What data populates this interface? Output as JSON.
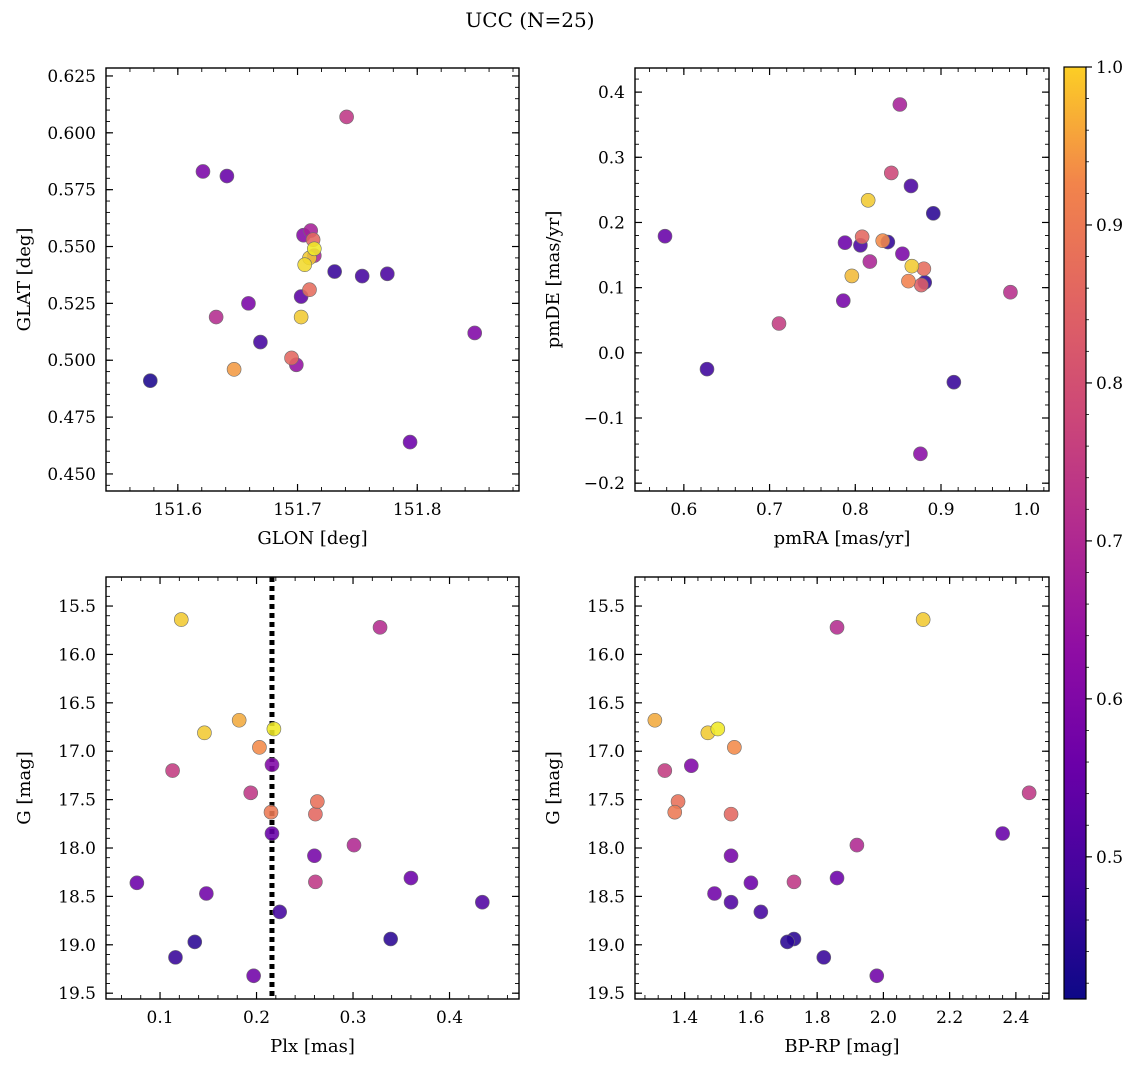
{
  "figure": {
    "title": "UCC (N=25)"
  },
  "colorbar": {
    "min": 0.41,
    "max": 1.0,
    "ticks": [
      0.5,
      0.6,
      0.7,
      0.8,
      0.9,
      1.0
    ],
    "cmap": "plasma"
  },
  "chart_data": [
    {
      "type": "scatter",
      "xlabel": "GLON [deg]",
      "ylabel": "GLAT [deg]",
      "xlim": [
        151.54,
        151.885
      ],
      "ylim": [
        0.4425,
        0.6285
      ],
      "xticks": [
        151.6,
        151.7,
        151.8
      ],
      "yticks": [
        0.45,
        0.475,
        0.5,
        0.525,
        0.55,
        0.575,
        0.6,
        0.625
      ],
      "points": [
        {
          "x": 151.741,
          "y": 0.607,
          "c": 0.74
        },
        {
          "x": 151.621,
          "y": 0.583,
          "c": 0.59
        },
        {
          "x": 151.641,
          "y": 0.581,
          "c": 0.55
        },
        {
          "x": 151.711,
          "y": 0.557,
          "c": 0.68
        },
        {
          "x": 151.705,
          "y": 0.555,
          "c": 0.61
        },
        {
          "x": 151.713,
          "y": 0.553,
          "c": 0.86
        },
        {
          "x": 151.714,
          "y": 0.549,
          "c": 0.99
        },
        {
          "x": 151.714,
          "y": 0.546,
          "c": 0.69
        },
        {
          "x": 151.71,
          "y": 0.545,
          "c": 0.97
        },
        {
          "x": 151.706,
          "y": 0.542,
          "c": 0.98
        },
        {
          "x": 151.731,
          "y": 0.539,
          "c": 0.47
        },
        {
          "x": 151.775,
          "y": 0.538,
          "c": 0.5
        },
        {
          "x": 151.754,
          "y": 0.537,
          "c": 0.49
        },
        {
          "x": 151.71,
          "y": 0.531,
          "c": 0.87
        },
        {
          "x": 151.703,
          "y": 0.528,
          "c": 0.53
        },
        {
          "x": 151.659,
          "y": 0.525,
          "c": 0.59
        },
        {
          "x": 151.703,
          "y": 0.519,
          "c": 0.97
        },
        {
          "x": 151.632,
          "y": 0.519,
          "c": 0.71
        },
        {
          "x": 151.848,
          "y": 0.512,
          "c": 0.6
        },
        {
          "x": 151.669,
          "y": 0.508,
          "c": 0.49
        },
        {
          "x": 151.695,
          "y": 0.501,
          "c": 0.86
        },
        {
          "x": 151.699,
          "y": 0.498,
          "c": 0.64
        },
        {
          "x": 151.647,
          "y": 0.496,
          "c": 0.94
        },
        {
          "x": 151.577,
          "y": 0.491,
          "c": 0.43
        },
        {
          "x": 151.794,
          "y": 0.464,
          "c": 0.56
        }
      ]
    },
    {
      "type": "scatter",
      "xlabel": "pmRA [mas/yr]",
      "ylabel": "pmDE [mas/yr]",
      "xlim": [
        0.543,
        1.026
      ],
      "ylim": [
        -0.212,
        0.437
      ],
      "xticks": [
        0.6,
        0.7,
        0.8,
        0.9,
        1.0
      ],
      "yticks": [
        -0.2,
        -0.1,
        0.0,
        0.1,
        0.2,
        0.3,
        0.4
      ],
      "points": [
        {
          "x": 0.852,
          "y": 0.381,
          "c": 0.68
        },
        {
          "x": 0.842,
          "y": 0.276,
          "c": 0.78
        },
        {
          "x": 0.865,
          "y": 0.256,
          "c": 0.5
        },
        {
          "x": 0.815,
          "y": 0.234,
          "c": 0.97
        },
        {
          "x": 0.891,
          "y": 0.214,
          "c": 0.45
        },
        {
          "x": 0.578,
          "y": 0.179,
          "c": 0.55
        },
        {
          "x": 0.808,
          "y": 0.178,
          "c": 0.86
        },
        {
          "x": 0.832,
          "y": 0.172,
          "c": 0.93
        },
        {
          "x": 0.838,
          "y": 0.17,
          "c": 0.46
        },
        {
          "x": 0.788,
          "y": 0.169,
          "c": 0.56
        },
        {
          "x": 0.806,
          "y": 0.165,
          "c": 0.5
        },
        {
          "x": 0.855,
          "y": 0.152,
          "c": 0.59
        },
        {
          "x": 0.817,
          "y": 0.14,
          "c": 0.69
        },
        {
          "x": 0.866,
          "y": 0.133,
          "c": 0.97
        },
        {
          "x": 0.88,
          "y": 0.129,
          "c": 0.87
        },
        {
          "x": 0.796,
          "y": 0.118,
          "c": 0.96
        },
        {
          "x": 0.862,
          "y": 0.11,
          "c": 0.92
        },
        {
          "x": 0.881,
          "y": 0.108,
          "c": 0.46
        },
        {
          "x": 0.877,
          "y": 0.104,
          "c": 0.84
        },
        {
          "x": 0.981,
          "y": 0.093,
          "c": 0.72
        },
        {
          "x": 0.786,
          "y": 0.08,
          "c": 0.58
        },
        {
          "x": 0.711,
          "y": 0.045,
          "c": 0.75
        },
        {
          "x": 0.627,
          "y": -0.025,
          "c": 0.48
        },
        {
          "x": 0.915,
          "y": -0.045,
          "c": 0.47
        },
        {
          "x": 0.876,
          "y": -0.155,
          "c": 0.62
        }
      ]
    },
    {
      "type": "scatter",
      "xlabel": "Plx [mas]",
      "ylabel": "G [mag]",
      "xlim": [
        0.044,
        0.472
      ],
      "ylim": [
        19.56,
        15.2
      ],
      "y_inverted": true,
      "xticks": [
        0.1,
        0.2,
        0.3,
        0.4
      ],
      "yticks": [
        15.5,
        16.0,
        16.5,
        17.0,
        17.5,
        18.0,
        18.5,
        19.0,
        19.5
      ],
      "vline": {
        "x": 0.216,
        "style": "dotted",
        "color": "#000000"
      },
      "points": [
        {
          "x": 0.122,
          "y": 15.64,
          "c": 0.97
        },
        {
          "x": 0.328,
          "y": 15.72,
          "c": 0.71
        },
        {
          "x": 0.182,
          "y": 16.68,
          "c": 0.95
        },
        {
          "x": 0.218,
          "y": 16.77,
          "c": 0.99
        },
        {
          "x": 0.146,
          "y": 16.81,
          "c": 0.97
        },
        {
          "x": 0.203,
          "y": 16.96,
          "c": 0.93
        },
        {
          "x": 0.216,
          "y": 17.14,
          "c": 0.6
        },
        {
          "x": 0.113,
          "y": 17.2,
          "c": 0.75
        },
        {
          "x": 0.194,
          "y": 17.43,
          "c": 0.74
        },
        {
          "x": 0.263,
          "y": 17.52,
          "c": 0.88
        },
        {
          "x": 0.215,
          "y": 17.63,
          "c": 0.9
        },
        {
          "x": 0.261,
          "y": 17.65,
          "c": 0.86
        },
        {
          "x": 0.216,
          "y": 17.85,
          "c": 0.55
        },
        {
          "x": 0.301,
          "y": 17.97,
          "c": 0.7
        },
        {
          "x": 0.26,
          "y": 18.08,
          "c": 0.58
        },
        {
          "x": 0.36,
          "y": 18.31,
          "c": 0.56
        },
        {
          "x": 0.261,
          "y": 18.35,
          "c": 0.74
        },
        {
          "x": 0.076,
          "y": 18.36,
          "c": 0.56
        },
        {
          "x": 0.148,
          "y": 18.47,
          "c": 0.57
        },
        {
          "x": 0.434,
          "y": 18.56,
          "c": 0.51
        },
        {
          "x": 0.224,
          "y": 18.66,
          "c": 0.49
        },
        {
          "x": 0.339,
          "y": 18.94,
          "c": 0.45
        },
        {
          "x": 0.136,
          "y": 18.97,
          "c": 0.45
        },
        {
          "x": 0.116,
          "y": 19.13,
          "c": 0.47
        },
        {
          "x": 0.197,
          "y": 19.32,
          "c": 0.57
        }
      ]
    },
    {
      "type": "scatter",
      "xlabel": "BP-RP [mag]",
      "ylabel": "G [mag]",
      "xlim": [
        1.25,
        2.5
      ],
      "ylim": [
        19.56,
        15.2
      ],
      "y_inverted": true,
      "xticks": [
        1.4,
        1.6,
        1.8,
        2.0,
        2.2,
        2.4
      ],
      "yticks": [
        15.5,
        16.0,
        16.5,
        17.0,
        17.5,
        18.0,
        18.5,
        19.0,
        19.5
      ],
      "points": [
        {
          "x": 2.12,
          "y": 15.64,
          "c": 0.97
        },
        {
          "x": 1.86,
          "y": 15.72,
          "c": 0.71
        },
        {
          "x": 1.31,
          "y": 16.68,
          "c": 0.95
        },
        {
          "x": 1.5,
          "y": 16.77,
          "c": 0.99
        },
        {
          "x": 1.47,
          "y": 16.81,
          "c": 0.97
        },
        {
          "x": 1.55,
          "y": 16.96,
          "c": 0.93
        },
        {
          "x": 1.42,
          "y": 17.15,
          "c": 0.6
        },
        {
          "x": 1.34,
          "y": 17.2,
          "c": 0.75
        },
        {
          "x": 2.44,
          "y": 17.43,
          "c": 0.74
        },
        {
          "x": 1.38,
          "y": 17.52,
          "c": 0.88
        },
        {
          "x": 1.37,
          "y": 17.63,
          "c": 0.9
        },
        {
          "x": 1.54,
          "y": 17.65,
          "c": 0.86
        },
        {
          "x": 2.36,
          "y": 17.85,
          "c": 0.55
        },
        {
          "x": 1.92,
          "y": 17.97,
          "c": 0.7
        },
        {
          "x": 1.54,
          "y": 18.08,
          "c": 0.58
        },
        {
          "x": 1.86,
          "y": 18.31,
          "c": 0.56
        },
        {
          "x": 1.73,
          "y": 18.35,
          "c": 0.74
        },
        {
          "x": 1.6,
          "y": 18.36,
          "c": 0.56
        },
        {
          "x": 1.49,
          "y": 18.47,
          "c": 0.57
        },
        {
          "x": 1.54,
          "y": 18.56,
          "c": 0.51
        },
        {
          "x": 1.63,
          "y": 18.66,
          "c": 0.49
        },
        {
          "x": 1.73,
          "y": 18.94,
          "c": 0.45
        },
        {
          "x": 1.71,
          "y": 18.97,
          "c": 0.45
        },
        {
          "x": 1.82,
          "y": 19.13,
          "c": 0.47
        },
        {
          "x": 1.98,
          "y": 19.32,
          "c": 0.57
        }
      ]
    }
  ]
}
